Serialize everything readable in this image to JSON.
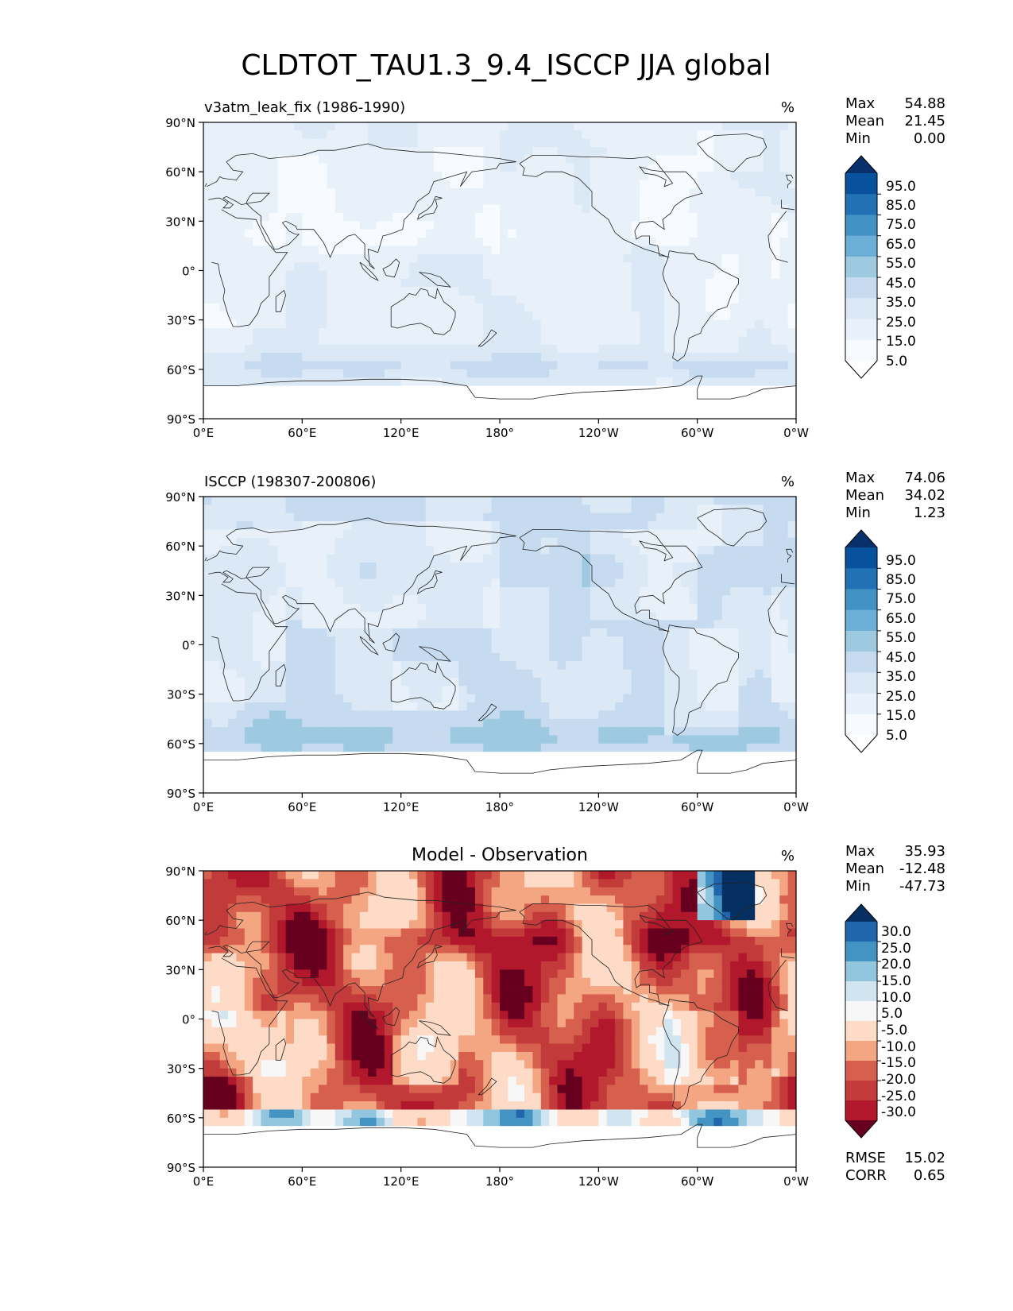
{
  "title": "CLDTOT_TAU1.3_9.4_ISCCP JJA global",
  "axes": {
    "lat_ticks": [
      "90°N",
      "60°N",
      "30°N",
      "0°",
      "30°S",
      "60°S",
      "90°S"
    ],
    "lon_ticks": [
      "0°E",
      "60°E",
      "120°E",
      "180°",
      "120°W",
      "60°W",
      "0°W"
    ]
  },
  "chart_data": [
    {
      "type": "heatmap",
      "left_title": "v3atm_leak_fix (1986-1990)",
      "center_title": "",
      "units": "%",
      "stats": [
        {
          "label": "Max",
          "value": "54.88"
        },
        {
          "label": "Mean",
          "value": "21.45"
        },
        {
          "label": "Min",
          "value": "0.00"
        }
      ],
      "colorbar": {
        "labels": [
          "95.0",
          "85.0",
          "75.0",
          "65.0",
          "55.0",
          "45.0",
          "35.0",
          "25.0",
          "15.0",
          "5.0"
        ],
        "colors": [
          "#08306b",
          "#08519c",
          "#2171b5",
          "#4292c6",
          "#6baed6",
          "#9ecae1",
          "#c6dbef",
          "#dbe9f6",
          "#e8f1fa",
          "#f7fbff",
          "#ffffff"
        ]
      },
      "field": {
        "kind": "model",
        "base": 24
      },
      "metrics": []
    },
    {
      "type": "heatmap",
      "left_title": "ISCCP (198307-200806)",
      "center_title": "",
      "units": "%",
      "stats": [
        {
          "label": "Max",
          "value": "74.06"
        },
        {
          "label": "Mean",
          "value": "34.02"
        },
        {
          "label": "Min",
          "value": "1.23"
        }
      ],
      "colorbar": {
        "labels": [
          "95.0",
          "85.0",
          "75.0",
          "65.0",
          "55.0",
          "45.0",
          "35.0",
          "25.0",
          "15.0",
          "5.0"
        ],
        "colors": [
          "#08306b",
          "#08519c",
          "#2171b5",
          "#4292c6",
          "#6baed6",
          "#9ecae1",
          "#c6dbef",
          "#dbe9f6",
          "#e8f1fa",
          "#f7fbff",
          "#ffffff"
        ]
      },
      "field": {
        "kind": "obs",
        "base": 36,
        "missing_south_of": -66
      },
      "metrics": []
    },
    {
      "type": "heatmap",
      "left_title": "",
      "center_title": "Model - Observation",
      "units": "%",
      "stats": [
        {
          "label": "Max",
          "value": "35.93"
        },
        {
          "label": "Mean",
          "value": "-12.48"
        },
        {
          "label": "Min",
          "value": "-47.73"
        }
      ],
      "colorbar": {
        "labels": [
          "30.0",
          "25.0",
          "20.0",
          "15.0",
          "10.0",
          "5.0",
          "-5.0",
          "-10.0",
          "-15.0",
          "-20.0",
          "-25.0",
          "-30.0"
        ],
        "colors": [
          "#053061",
          "#2166ac",
          "#4393c3",
          "#92c5de",
          "#d1e5f0",
          "#f7f7f7",
          "#fddbc7",
          "#f4a582",
          "#d6604d",
          "#c23a3a",
          "#b2182b",
          "#67001f"
        ]
      },
      "field": {
        "kind": "diff",
        "base": -12,
        "missing_south_of": -66
      },
      "metrics": [
        {
          "label": "RMSE",
          "value": "15.02"
        },
        {
          "label": "CORR",
          "value": "0.65"
        }
      ]
    }
  ]
}
